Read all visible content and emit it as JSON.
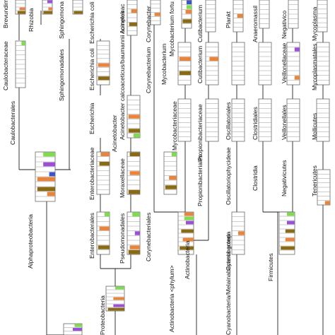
{
  "colors": {
    "orange": "#e8843c",
    "olive": "#8b6a14",
    "green": "#7fdc4e",
    "purple": "#9b4fd6",
    "blue": "#3b55c8",
    "gray": "#c8c8c8"
  },
  "labels": {
    "brevundimonas": "Brevundim",
    "rhizobia": "Rhizobia",
    "sphingomonas": "Sphingomona",
    "escherichia_coli": "Escherichia coli",
    "escherichia_coli_complex": "Escherichia coli",
    "acinetobacter_complex": "Acinetobacter calcoaceticus/baumannii complex",
    "acinetobacter_top": "Acinetobac",
    "corynebacterium": "Corynebacter",
    "mycobacterium_fortuitum": "Mycobacterium fortu",
    "cutibacterium": "Cutibacterium",
    "plankto": "Plankt",
    "anaeromassilibacillus": "Anaeromassil",
    "negativicoccus": "Negativico",
    "mycoplasma": "Mycoplasma",
    "caulobacteraceae": "Caulobacteraceae",
    "sphingomonadales": "Sphingomonadales",
    "escherichia_coli_mid": "Escherichia coli",
    "acinetobacter_mid": "Acinetobacter calcoaceticus/baumannii complex",
    "corynebacterium_mid": "Corynebacterium",
    "mycobacterium": "Mycobacterium",
    "cutibacterium_mid": "Cutibacterium",
    "veillonellaceae": "Veillonellaceae",
    "mycoplasmatales": "Mycoplasmatales",
    "caulobacterales": "Caulobacterales",
    "escherichia": "Escherichia",
    "acinetobacter": "Acinetobacter",
    "mycobacteriaceae": "Mycobacteriaceae",
    "propionibacteriaceae": "Propionibacteriaceae",
    "oscillatoriales": "Oscillatoriales",
    "clostridiales": "Clostridiales",
    "veillonellales": "Veillonellales",
    "mollicutes": "Mollicutes",
    "enterobacteriaceae": "Enterobacteriaceae",
    "moraxellaceae": "Moraxellaceae",
    "propionibacteriales": "Propionibacteriales",
    "oscillatoriophycideae": "Oscillatoriophycideae",
    "clostridia": "Clostridia",
    "negativicutes": "Negativicutes",
    "tenericutes": "Tenericutes",
    "alphaproteobacteria": "Alphaproteobacteria",
    "enterobacterales": "Enterobacterales",
    "pseudomonadales": "Pseudomonadales",
    "corynebacteriales": "Corynebacteriales",
    "cyanobacteria": "Cyanobacteria",
    "firmicutes": "Firmicutes",
    "actinobacteria": "Actinobacteria",
    "actinobacteria_phylum": "Actinobacteria <phylum>",
    "cyanobacteria_group": "Cyanobacteria/Melainabacteria group",
    "proteobacteria": "Proteobacteria"
  }
}
